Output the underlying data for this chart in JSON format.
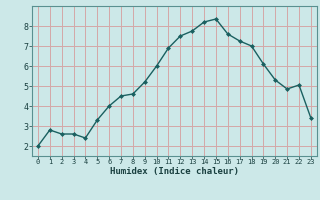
{
  "x": [
    0,
    1,
    2,
    3,
    4,
    5,
    6,
    7,
    8,
    9,
    10,
    11,
    12,
    13,
    14,
    15,
    16,
    17,
    18,
    19,
    20,
    21,
    22,
    23
  ],
  "y": [
    2.0,
    2.8,
    2.6,
    2.6,
    2.4,
    3.3,
    4.0,
    4.5,
    4.6,
    5.2,
    6.0,
    6.9,
    7.5,
    7.75,
    8.2,
    8.35,
    7.6,
    7.25,
    7.0,
    6.1,
    5.3,
    4.85,
    5.05,
    3.4
  ],
  "xlabel": "Humidex (Indice chaleur)",
  "xlim": [
    -0.5,
    23.5
  ],
  "ylim": [
    1.5,
    9.0
  ],
  "bg_color": "#cce8e8",
  "grid_color": "#d4a8a8",
  "line_color": "#1a6060",
  "marker_color": "#1a6060",
  "yticks": [
    2,
    3,
    4,
    5,
    6,
    7,
    8
  ],
  "xticks": [
    0,
    1,
    2,
    3,
    4,
    5,
    6,
    7,
    8,
    9,
    10,
    11,
    12,
    13,
    14,
    15,
    16,
    17,
    18,
    19,
    20,
    21,
    22,
    23
  ]
}
